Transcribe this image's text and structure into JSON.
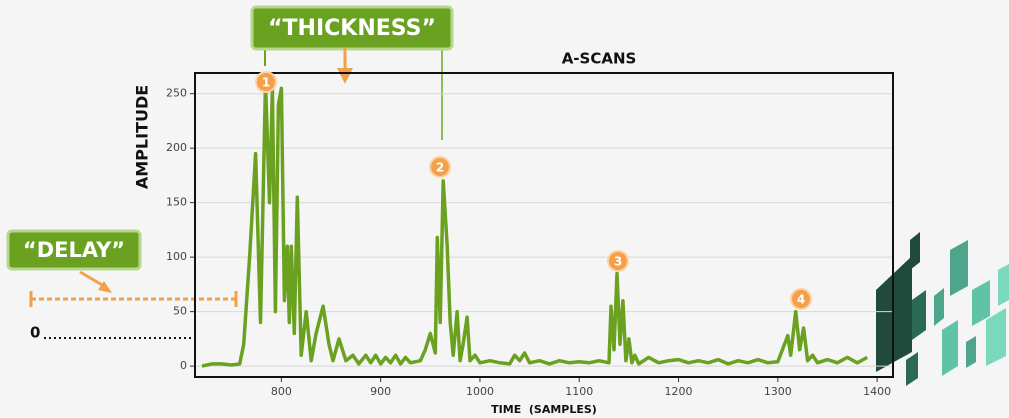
{
  "chart_data": {
    "type": "line",
    "title": "A-SCANS",
    "xlabel": "TIME  (SAMPLES)",
    "ylabel": "AMPLITUDE",
    "color": "#6aa121",
    "x": [
      720,
      730,
      740,
      750,
      758,
      762,
      768,
      774,
      779,
      784,
      788,
      791,
      794,
      797,
      800,
      803,
      806,
      808,
      810,
      813,
      816,
      820,
      825,
      830,
      835,
      842,
      848,
      852,
      858,
      865,
      872,
      878,
      885,
      890,
      895,
      900,
      905,
      910,
      915,
      920,
      925,
      930,
      940,
      945,
      950,
      955,
      957,
      960,
      963,
      967,
      970,
      973,
      977,
      980,
      983,
      987,
      990,
      995,
      1000,
      1010,
      1020,
      1030,
      1035,
      1040,
      1045,
      1050,
      1060,
      1070,
      1080,
      1090,
      1100,
      1110,
      1120,
      1130,
      1132,
      1135,
      1138,
      1141,
      1144,
      1147,
      1150,
      1153,
      1156,
      1160,
      1170,
      1180,
      1190,
      1200,
      1210,
      1220,
      1230,
      1240,
      1250,
      1260,
      1270,
      1280,
      1290,
      1300,
      1310,
      1313,
      1318,
      1322,
      1326,
      1330,
      1335,
      1340,
      1350,
      1360,
      1370,
      1380,
      1390
    ],
    "values": [
      0,
      2,
      2,
      1,
      2,
      20,
      100,
      195,
      40,
      260,
      150,
      255,
      50,
      240,
      255,
      60,
      110,
      40,
      110,
      30,
      155,
      10,
      50,
      5,
      30,
      55,
      20,
      5,
      25,
      5,
      10,
      2,
      10,
      3,
      10,
      2,
      8,
      3,
      10,
      2,
      8,
      3,
      5,
      15,
      30,
      12,
      118,
      40,
      170,
      110,
      40,
      10,
      50,
      5,
      20,
      45,
      5,
      10,
      3,
      5,
      3,
      2,
      10,
      5,
      12,
      3,
      5,
      2,
      5,
      3,
      4,
      3,
      5,
      3,
      55,
      15,
      85,
      20,
      60,
      5,
      25,
      3,
      10,
      2,
      8,
      3,
      5,
      6,
      3,
      5,
      3,
      6,
      2,
      5,
      3,
      6,
      3,
      4,
      28,
      10,
      50,
      15,
      35,
      5,
      10,
      3,
      6,
      3,
      8,
      3,
      8
    ],
    "xlim": [
      713,
      1416
    ],
    "ylim": [
      -10,
      269
    ],
    "xticks": [
      800,
      900,
      1000,
      1100,
      1200,
      1300,
      1400
    ],
    "yticks": [
      0,
      50,
      100,
      150,
      200,
      250
    ],
    "grid": true,
    "annotations": {
      "thickness": "“THICKNESS”",
      "delay": "“DELAY”",
      "zero": "0",
      "peaks": [
        "1",
        "2",
        "3",
        "4"
      ]
    }
  }
}
